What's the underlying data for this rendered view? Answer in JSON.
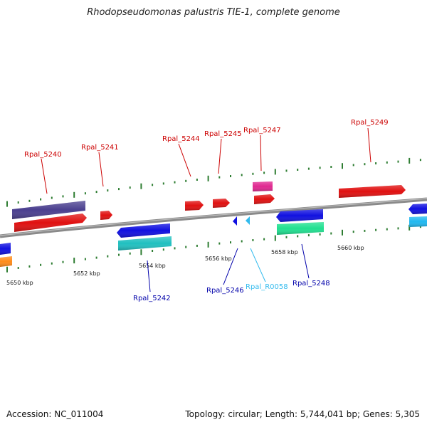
{
  "title": "Rhodopseudomonas palustris TIE-1, complete genome",
  "footer": {
    "accession": "Accession: NC_011004",
    "summary": "Topology: circular; Length: 5,744,041 bp; Genes: 5,305"
  },
  "colors": {
    "backbone": "#8a8a8a",
    "tick": "#2e7d32",
    "label_top": "#cc0000",
    "label_bottom_blue": "#0000aa",
    "label_bottom_cyan": "#33bbee"
  },
  "scale_labels": [
    "5650 kbp",
    "5652 kbp",
    "5654 kbp",
    "5656 kbp",
    "5658 kbp",
    "5660 kbp"
  ],
  "gene_labels": [
    {
      "id": "g5240",
      "text": "Rpal_5240",
      "strand": "top"
    },
    {
      "id": "g5241",
      "text": "Rpal_5241",
      "strand": "top"
    },
    {
      "id": "g5244",
      "text": "Rpal_5244",
      "strand": "top"
    },
    {
      "id": "g5245",
      "text": "Rpal_5245",
      "strand": "top"
    },
    {
      "id": "g5247",
      "text": "Rpal_5247",
      "strand": "top"
    },
    {
      "id": "g5249",
      "text": "Rpal_5249",
      "strand": "top"
    },
    {
      "id": "g5242",
      "text": "Rpal_5242",
      "strand": "bottom"
    },
    {
      "id": "g5246",
      "text": "Rpal_5246",
      "strand": "bottom"
    },
    {
      "id": "gR0058",
      "text": "Rpal_R0058",
      "strand": "bottom"
    },
    {
      "id": "g5248",
      "text": "Rpal_5248",
      "strand": "bottom"
    }
  ]
}
